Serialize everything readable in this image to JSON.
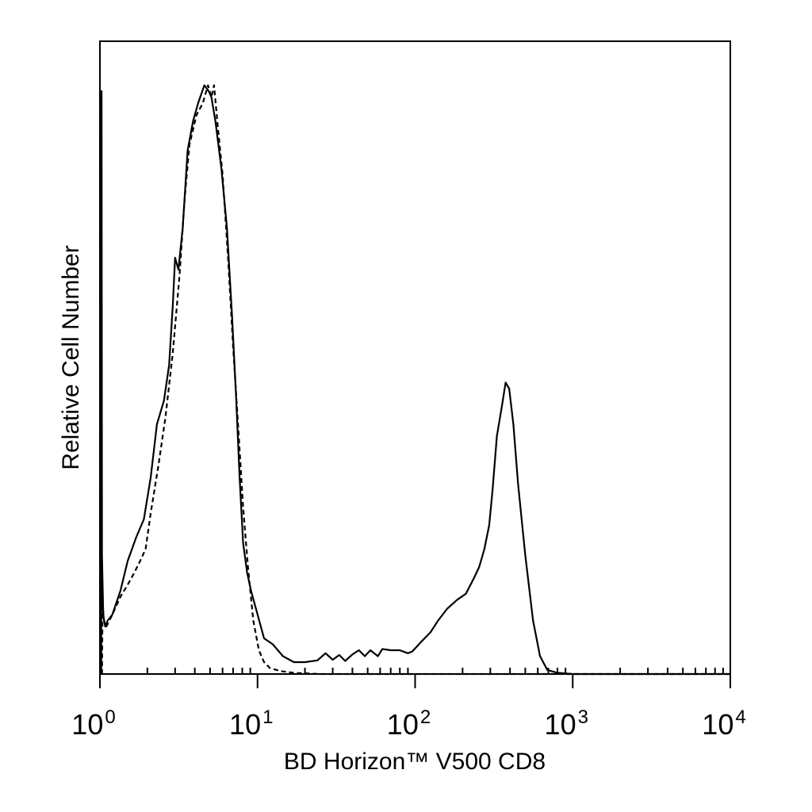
{
  "chart_data": {
    "type": "line",
    "xlabel": "BD Horizon™ V500 CD8",
    "ylabel": "Relative Cell Number",
    "x_scale": "log",
    "xlim": [
      1,
      10000
    ],
    "ylim": [
      0,
      100
    ],
    "x_ticks": [
      {
        "base": "10",
        "exp": "0"
      },
      {
        "base": "10",
        "exp": "1"
      },
      {
        "base": "10",
        "exp": "2"
      },
      {
        "base": "10",
        "exp": "3"
      },
      {
        "base": "10",
        "exp": "4"
      }
    ],
    "grid": false,
    "legend": "none",
    "series": [
      {
        "style": "solid",
        "color": "#000000",
        "points": [
          [
            1.02,
            0
          ],
          [
            1.02,
            98
          ],
          [
            1.025,
            98
          ],
          [
            1.03,
            20
          ],
          [
            1.05,
            10
          ],
          [
            1.08,
            8
          ],
          [
            1.12,
            9
          ],
          [
            1.2,
            10
          ],
          [
            1.35,
            14
          ],
          [
            1.5,
            19
          ],
          [
            1.7,
            23
          ],
          [
            1.9,
            26
          ],
          [
            2.1,
            33
          ],
          [
            2.3,
            42
          ],
          [
            2.55,
            46
          ],
          [
            2.75,
            52
          ],
          [
            2.9,
            62
          ],
          [
            3.0,
            70
          ],
          [
            3.15,
            68
          ],
          [
            3.35,
            75
          ],
          [
            3.6,
            88
          ],
          [
            3.9,
            93
          ],
          [
            4.2,
            96
          ],
          [
            4.6,
            99
          ],
          [
            4.9,
            98
          ],
          [
            5.1,
            97
          ],
          [
            5.4,
            93
          ],
          [
            5.9,
            85
          ],
          [
            6.4,
            75
          ],
          [
            6.9,
            60
          ],
          [
            7.3,
            47
          ],
          [
            7.7,
            33
          ],
          [
            8.1,
            22
          ],
          [
            8.6,
            17
          ],
          [
            9.1,
            14
          ],
          [
            10.0,
            10
          ],
          [
            11.0,
            6
          ],
          [
            12.5,
            5
          ],
          [
            14.5,
            3
          ],
          [
            17,
            2
          ],
          [
            20,
            2
          ],
          [
            24,
            2.3
          ],
          [
            27,
            3.5
          ],
          [
            30,
            2.4
          ],
          [
            33,
            3.2
          ],
          [
            36,
            2.2
          ],
          [
            40,
            3.3
          ],
          [
            44,
            4
          ],
          [
            48,
            3
          ],
          [
            52,
            4
          ],
          [
            58,
            3
          ],
          [
            62,
            4.2
          ],
          [
            70,
            4
          ],
          [
            80,
            4
          ],
          [
            90,
            3.5
          ],
          [
            96,
            3.8
          ],
          [
            110,
            5.5
          ],
          [
            125,
            7
          ],
          [
            140,
            9
          ],
          [
            160,
            11
          ],
          [
            185,
            12.5
          ],
          [
            210,
            13.5
          ],
          [
            235,
            16
          ],
          [
            255,
            18
          ],
          [
            275,
            21
          ],
          [
            295,
            25
          ],
          [
            310,
            31
          ],
          [
            330,
            40
          ],
          [
            355,
            45
          ],
          [
            375,
            49
          ],
          [
            395,
            48
          ],
          [
            420,
            42
          ],
          [
            450,
            32
          ],
          [
            500,
            20
          ],
          [
            560,
            9
          ],
          [
            620,
            3
          ],
          [
            690,
            0.7
          ],
          [
            800,
            0.2
          ],
          [
            1000,
            0
          ],
          [
            10000,
            0
          ]
        ]
      },
      {
        "style": "dashed",
        "color": "#000000",
        "points": [
          [
            1.03,
            0
          ],
          [
            1.04,
            12
          ],
          [
            1.06,
            9
          ],
          [
            1.1,
            8
          ],
          [
            1.2,
            10
          ],
          [
            1.35,
            13
          ],
          [
            1.5,
            15
          ],
          [
            1.65,
            17
          ],
          [
            1.8,
            19
          ],
          [
            1.95,
            21
          ],
          [
            2.1,
            27
          ],
          [
            2.35,
            35
          ],
          [
            2.6,
            43
          ],
          [
            2.9,
            54
          ],
          [
            3.2,
            67
          ],
          [
            3.45,
            80
          ],
          [
            3.7,
            89
          ],
          [
            4.1,
            94
          ],
          [
            4.5,
            96
          ],
          [
            4.85,
            99
          ],
          [
            5.1,
            97
          ],
          [
            5.3,
            99
          ],
          [
            5.6,
            92
          ],
          [
            6.0,
            84
          ],
          [
            6.5,
            70
          ],
          [
            7.0,
            55
          ],
          [
            7.6,
            40
          ],
          [
            8.1,
            28
          ],
          [
            8.7,
            18
          ],
          [
            9.4,
            9
          ],
          [
            10.2,
            4
          ],
          [
            11,
            2
          ],
          [
            12,
            1
          ],
          [
            14,
            0.5
          ],
          [
            17,
            0.2
          ],
          [
            25,
            0
          ],
          [
            10000,
            0
          ]
        ]
      }
    ]
  }
}
